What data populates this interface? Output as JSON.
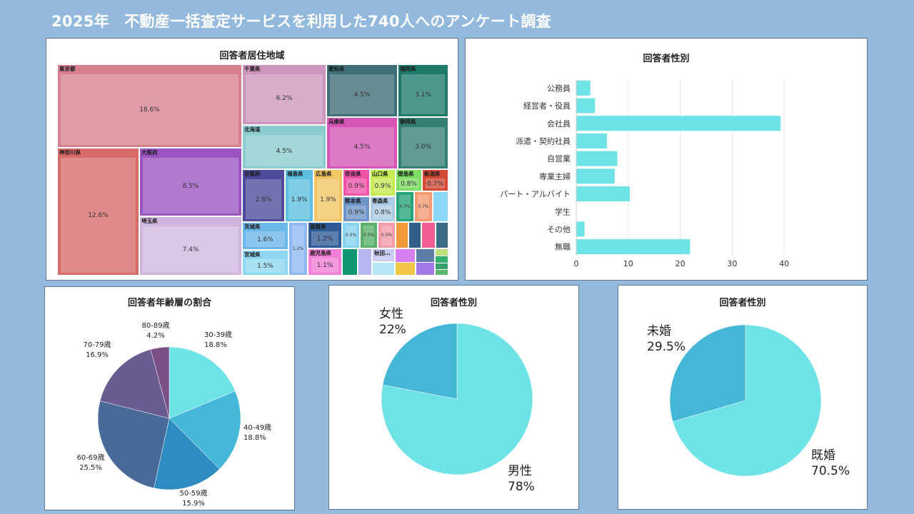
{
  "page": {
    "title": "2025年　不動産一括査定サービスを利用した740人へのアンケート調査"
  },
  "treemap": {
    "title": "回答者居住地域",
    "chart_data": {
      "type": "treemap",
      "title": "回答者居住地域",
      "items": [
        {
          "label": "東京都",
          "value": "18.6%",
          "color": "#d98090"
        },
        {
          "label": "神奈川県",
          "value": "12.6%",
          "color": "#d96a6a"
        },
        {
          "label": "大阪府",
          "value": "8.5%",
          "color": "#9b55c2"
        },
        {
          "label": "埼玉県",
          "value": "7.4%",
          "color": "#d0b6df"
        },
        {
          "label": "千葉県",
          "value": "6.2%",
          "color": "#ce95bc"
        },
        {
          "label": "北海道",
          "value": "4.5%",
          "color": "#8ccbce"
        },
        {
          "label": "愛知県",
          "value": "4.5%",
          "color": "#3f6e78"
        },
        {
          "label": "兵庫県",
          "value": "4.5%",
          "color": "#d455b5"
        },
        {
          "label": "福岡県",
          "value": "3.1%",
          "color": "#1f7a6c"
        },
        {
          "label": "静岡県",
          "value": "3.0%",
          "color": "#357e74"
        },
        {
          "label": "京都府",
          "value": "2.8%",
          "color": "#4d4c9c"
        },
        {
          "label": "福島県",
          "value": "1.9%",
          "color": "#5cbfe0"
        },
        {
          "label": "広島県",
          "value": "1.9%",
          "color": "#f2c664"
        },
        {
          "label": "奈良県",
          "value": "0.9%",
          "color": "#f052a8"
        },
        {
          "label": "山口県",
          "value": "0.9%",
          "color": "#c5ea54"
        },
        {
          "label": "徳島県",
          "value": "0.8%",
          "color": "#7ddc63"
        },
        {
          "label": "新潟県",
          "value": "0.7%",
          "color": "#d24a35"
        },
        {
          "label": "熊本県",
          "value": "0.9%",
          "color": "#6f94c8"
        },
        {
          "label": "青森県",
          "value": "0.8%",
          "color": "#aecbe6"
        },
        {
          "label": "茨城県",
          "value": "1.6%",
          "color": "#6cb7ea"
        },
        {
          "label": "宮城県",
          "value": "1.5%",
          "color": "#8fd6f2"
        },
        {
          "label": "滋賀県",
          "value": "1.2%",
          "color": "#2e5a96"
        },
        {
          "label": "鹿児島県",
          "value": "1.1%",
          "color": "#f27ed7"
        },
        {
          "label": "秋田…",
          "value": "",
          "color": "#c9cbf2"
        },
        {
          "label": "",
          "value": "1.2%",
          "color": "#8fb8f2"
        },
        {
          "label": "",
          "value": "0.7%",
          "color": "#27a37a"
        },
        {
          "label": "",
          "value": "0.7%",
          "color": "#f59a72"
        },
        {
          "label": "",
          "value": "0.5%",
          "color": "#86d2ef"
        },
        {
          "label": "",
          "value": "0.5%",
          "color": "#58b06a"
        },
        {
          "label": "",
          "value": "0.5%",
          "color": "#f29aa8"
        }
      ],
      "misc_colors": [
        "#8ad7f5",
        "#f29a3a",
        "#2f5f86",
        "#f25c92",
        "#3e6b88",
        "#0e9670",
        "#b6b6f0",
        "#d57ff2",
        "#5f7ca8",
        "#bde07a",
        "#f2c545",
        "#a37be8",
        "#33b06b",
        "#36a06a",
        "#b6e6f5",
        "#5ab56d"
      ]
    }
  },
  "occupation": {
    "title": "回答者性別",
    "chart_data": {
      "type": "bar",
      "orientation": "horizontal",
      "title": "回答者性別",
      "categories": [
        "公務員",
        "経営者・役員",
        "会社員",
        "派遣・契約社員",
        "自営業",
        "専業主婦",
        "パート・アルバイト",
        "学生",
        "その他",
        "無職"
      ],
      "values": [
        2.7,
        3.6,
        39.3,
        5.9,
        7.9,
        7.4,
        10.3,
        0,
        1.6,
        21.9
      ],
      "xlim": [
        0,
        45
      ],
      "xticks": [
        "0",
        "10",
        "20",
        "30",
        "40"
      ],
      "grid": true,
      "color": "#6de3e8"
    }
  },
  "age": {
    "title": "回答者年齢層の割合",
    "chart_data": {
      "type": "pie",
      "title": "回答者年齢層の割合",
      "labels": [
        "30-39歳",
        "40-49歳",
        "50-59歳",
        "60-69歳",
        "70-79歳",
        "80-89歳"
      ],
      "values": [
        18.8,
        18.8,
        15.9,
        25.5,
        16.9,
        4.2
      ],
      "value_labels": [
        "18.8%",
        "18.8%",
        "15.9%",
        "25.5%",
        "16.9%",
        "4.2%"
      ],
      "colors": [
        "#6de3e8",
        "#45b8d8",
        "#2e8cc0",
        "#476a98",
        "#6a5b90",
        "#7b4f88"
      ]
    }
  },
  "gender": {
    "title": "回答者性別",
    "chart_data": {
      "type": "pie",
      "title": "回答者性別",
      "labels": [
        "男性",
        "女性"
      ],
      "values": [
        78,
        22
      ],
      "value_labels": [
        "78%",
        "22%"
      ],
      "colors": [
        "#6de3e8",
        "#44b6d6"
      ]
    }
  },
  "marriage": {
    "title": "回答者性別",
    "chart_data": {
      "type": "pie",
      "title": "回答者性別",
      "labels": [
        "既婚",
        "未婚"
      ],
      "values": [
        70.5,
        29.5
      ],
      "value_labels": [
        "70.5%",
        "29.5%"
      ],
      "colors": [
        "#6de3e8",
        "#44b6d6"
      ]
    }
  }
}
